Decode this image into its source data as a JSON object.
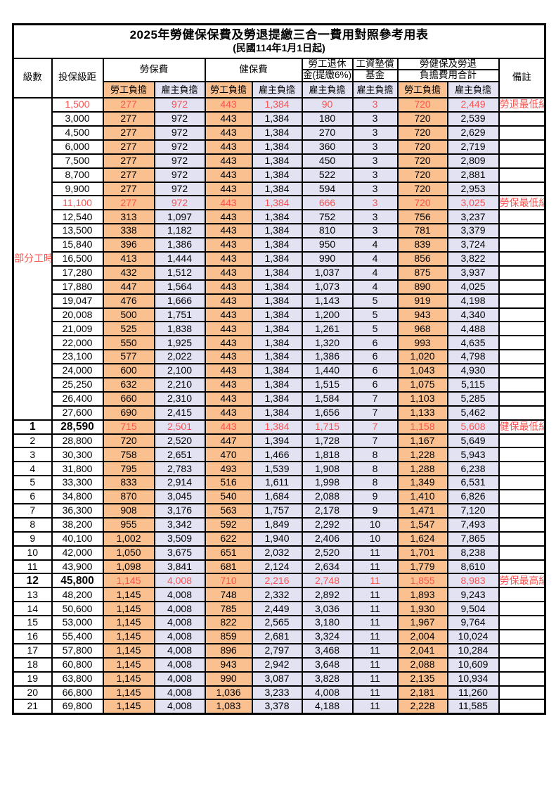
{
  "title": "2025年勞健保保費及勞退提繳三合一費用對照參考用表",
  "subtitle": "(民國114年1月1日起)",
  "header": {
    "level": "級數",
    "bracket": "投保級距",
    "labor_insurance": "勞保費",
    "health_insurance": "健保費",
    "pension_line1": "勞工退休",
    "pension_line2": "金(提繳6%)",
    "wage_fund_line1": "工資墊償",
    "wage_fund_line2": "基金",
    "total_line1": "勞健保及勞退",
    "total_line2": "負擔費用合計",
    "employee": "勞工負擔",
    "employer": "雇主負擔",
    "notes": "備註"
  },
  "part_time": {
    "label": "部分工時",
    "rowspan": 23
  },
  "colors": {
    "emp-bg": "#fac090",
    "er-bg": "#e3e2f3",
    "hl": "#fa5450",
    "border": "#000000"
  },
  "rows": [
    {
      "level": null,
      "bracket": "1,500",
      "cells": [
        "277",
        "972",
        "443",
        "1,384",
        "90",
        "3",
        "720",
        "2,449"
      ],
      "note": "勞退最低級距",
      "highlight": true,
      "bold": false
    },
    {
      "level": null,
      "bracket": "3,000",
      "cells": [
        "277",
        "972",
        "443",
        "1,384",
        "180",
        "3",
        "720",
        "2,539"
      ],
      "note": "",
      "highlight": false,
      "bold": false
    },
    {
      "level": null,
      "bracket": "4,500",
      "cells": [
        "277",
        "972",
        "443",
        "1,384",
        "270",
        "3",
        "720",
        "2,629"
      ],
      "note": "",
      "highlight": false,
      "bold": false
    },
    {
      "level": null,
      "bracket": "6,000",
      "cells": [
        "277",
        "972",
        "443",
        "1,384",
        "360",
        "3",
        "720",
        "2,719"
      ],
      "note": "",
      "highlight": false,
      "bold": false
    },
    {
      "level": null,
      "bracket": "7,500",
      "cells": [
        "277",
        "972",
        "443",
        "1,384",
        "450",
        "3",
        "720",
        "2,809"
      ],
      "note": "",
      "highlight": false,
      "bold": false
    },
    {
      "level": null,
      "bracket": "8,700",
      "cells": [
        "277",
        "972",
        "443",
        "1,384",
        "522",
        "3",
        "720",
        "2,881"
      ],
      "note": "",
      "highlight": false,
      "bold": false
    },
    {
      "level": null,
      "bracket": "9,900",
      "cells": [
        "277",
        "972",
        "443",
        "1,384",
        "594",
        "3",
        "720",
        "2,953"
      ],
      "note": "",
      "highlight": false,
      "bold": false
    },
    {
      "level": null,
      "bracket": "11,100",
      "cells": [
        "277",
        "972",
        "443",
        "1,384",
        "666",
        "3",
        "720",
        "3,025"
      ],
      "note": "勞保最低級距",
      "highlight": true,
      "bold": false
    },
    {
      "level": null,
      "bracket": "12,540",
      "cells": [
        "313",
        "1,097",
        "443",
        "1,384",
        "752",
        "3",
        "756",
        "3,237"
      ],
      "note": "",
      "highlight": false,
      "bold": false
    },
    {
      "level": null,
      "bracket": "13,500",
      "cells": [
        "338",
        "1,182",
        "443",
        "1,384",
        "810",
        "3",
        "781",
        "3,379"
      ],
      "note": "",
      "highlight": false,
      "bold": false
    },
    {
      "level": null,
      "bracket": "15,840",
      "cells": [
        "396",
        "1,386",
        "443",
        "1,384",
        "950",
        "4",
        "839",
        "3,724"
      ],
      "note": "",
      "highlight": false,
      "bold": false
    },
    {
      "level": null,
      "bracket": "16,500",
      "cells": [
        "413",
        "1,444",
        "443",
        "1,384",
        "990",
        "4",
        "856",
        "3,822"
      ],
      "note": "",
      "highlight": false,
      "bold": false
    },
    {
      "level": null,
      "bracket": "17,280",
      "cells": [
        "432",
        "1,512",
        "443",
        "1,384",
        "1,037",
        "4",
        "875",
        "3,937"
      ],
      "note": "",
      "highlight": false,
      "bold": false
    },
    {
      "level": null,
      "bracket": "17,880",
      "cells": [
        "447",
        "1,564",
        "443",
        "1,384",
        "1,073",
        "4",
        "890",
        "4,025"
      ],
      "note": "",
      "highlight": false,
      "bold": false
    },
    {
      "level": null,
      "bracket": "19,047",
      "cells": [
        "476",
        "1,666",
        "443",
        "1,384",
        "1,143",
        "5",
        "919",
        "4,198"
      ],
      "note": "",
      "highlight": false,
      "bold": false
    },
    {
      "level": null,
      "bracket": "20,008",
      "cells": [
        "500",
        "1,751",
        "443",
        "1,384",
        "1,200",
        "5",
        "943",
        "4,340"
      ],
      "note": "",
      "highlight": false,
      "bold": false
    },
    {
      "level": null,
      "bracket": "21,009",
      "cells": [
        "525",
        "1,838",
        "443",
        "1,384",
        "1,261",
        "5",
        "968",
        "4,488"
      ],
      "note": "",
      "highlight": false,
      "bold": false
    },
    {
      "level": null,
      "bracket": "22,000",
      "cells": [
        "550",
        "1,925",
        "443",
        "1,384",
        "1,320",
        "6",
        "993",
        "4,635"
      ],
      "note": "",
      "highlight": false,
      "bold": false
    },
    {
      "level": null,
      "bracket": "23,100",
      "cells": [
        "577",
        "2,022",
        "443",
        "1,384",
        "1,386",
        "6",
        "1,020",
        "4,798"
      ],
      "note": "",
      "highlight": false,
      "bold": false
    },
    {
      "level": null,
      "bracket": "24,000",
      "cells": [
        "600",
        "2,100",
        "443",
        "1,384",
        "1,440",
        "6",
        "1,043",
        "4,930"
      ],
      "note": "",
      "highlight": false,
      "bold": false
    },
    {
      "level": null,
      "bracket": "25,250",
      "cells": [
        "632",
        "2,210",
        "443",
        "1,384",
        "1,515",
        "6",
        "1,075",
        "5,115"
      ],
      "note": "",
      "highlight": false,
      "bold": false
    },
    {
      "level": null,
      "bracket": "26,400",
      "cells": [
        "660",
        "2,310",
        "443",
        "1,384",
        "1,584",
        "7",
        "1,103",
        "5,285"
      ],
      "note": "",
      "highlight": false,
      "bold": false
    },
    {
      "level": null,
      "bracket": "27,600",
      "cells": [
        "690",
        "2,415",
        "443",
        "1,384",
        "1,656",
        "7",
        "1,133",
        "5,462"
      ],
      "note": "",
      "highlight": false,
      "bold": false
    },
    {
      "level": "1",
      "bracket": "28,590",
      "cells": [
        "715",
        "2,501",
        "443",
        "1,384",
        "1,715",
        "7",
        "1,158",
        "5,608"
      ],
      "note": "健保最低級距",
      "highlight": true,
      "bold": true
    },
    {
      "level": "2",
      "bracket": "28,800",
      "cells": [
        "720",
        "2,520",
        "447",
        "1,394",
        "1,728",
        "7",
        "1,167",
        "5,649"
      ],
      "note": "",
      "highlight": false,
      "bold": false
    },
    {
      "level": "3",
      "bracket": "30,300",
      "cells": [
        "758",
        "2,651",
        "470",
        "1,466",
        "1,818",
        "8",
        "1,228",
        "5,943"
      ],
      "note": "",
      "highlight": false,
      "bold": false
    },
    {
      "level": "4",
      "bracket": "31,800",
      "cells": [
        "795",
        "2,783",
        "493",
        "1,539",
        "1,908",
        "8",
        "1,288",
        "6,238"
      ],
      "note": "",
      "highlight": false,
      "bold": false
    },
    {
      "level": "5",
      "bracket": "33,300",
      "cells": [
        "833",
        "2,914",
        "516",
        "1,611",
        "1,998",
        "8",
        "1,349",
        "6,531"
      ],
      "note": "",
      "highlight": false,
      "bold": false
    },
    {
      "level": "6",
      "bracket": "34,800",
      "cells": [
        "870",
        "3,045",
        "540",
        "1,684",
        "2,088",
        "9",
        "1,410",
        "6,826"
      ],
      "note": "",
      "highlight": false,
      "bold": false
    },
    {
      "level": "7",
      "bracket": "36,300",
      "cells": [
        "908",
        "3,176",
        "563",
        "1,757",
        "2,178",
        "9",
        "1,471",
        "7,120"
      ],
      "note": "",
      "highlight": false,
      "bold": false
    },
    {
      "level": "8",
      "bracket": "38,200",
      "cells": [
        "955",
        "3,342",
        "592",
        "1,849",
        "2,292",
        "10",
        "1,547",
        "7,493"
      ],
      "note": "",
      "highlight": false,
      "bold": false
    },
    {
      "level": "9",
      "bracket": "40,100",
      "cells": [
        "1,002",
        "3,509",
        "622",
        "1,940",
        "2,406",
        "10",
        "1,624",
        "7,865"
      ],
      "note": "",
      "highlight": false,
      "bold": false
    },
    {
      "level": "10",
      "bracket": "42,000",
      "cells": [
        "1,050",
        "3,675",
        "651",
        "2,032",
        "2,520",
        "11",
        "1,701",
        "8,238"
      ],
      "note": "",
      "highlight": false,
      "bold": false
    },
    {
      "level": "11",
      "bracket": "43,900",
      "cells": [
        "1,098",
        "3,841",
        "681",
        "2,124",
        "2,634",
        "11",
        "1,779",
        "8,610"
      ],
      "note": "",
      "highlight": false,
      "bold": false
    },
    {
      "level": "12",
      "bracket": "45,800",
      "cells": [
        "1,145",
        "4,008",
        "710",
        "2,216",
        "2,748",
        "11",
        "1,855",
        "8,983"
      ],
      "note": "勞保最高級距",
      "highlight": true,
      "bold": true
    },
    {
      "level": "13",
      "bracket": "48,200",
      "cells": [
        "1,145",
        "4,008",
        "748",
        "2,332",
        "2,892",
        "11",
        "1,893",
        "9,243"
      ],
      "note": "",
      "highlight": false,
      "bold": false
    },
    {
      "level": "14",
      "bracket": "50,600",
      "cells": [
        "1,145",
        "4,008",
        "785",
        "2,449",
        "3,036",
        "11",
        "1,930",
        "9,504"
      ],
      "note": "",
      "highlight": false,
      "bold": false
    },
    {
      "level": "15",
      "bracket": "53,000",
      "cells": [
        "1,145",
        "4,008",
        "822",
        "2,565",
        "3,180",
        "11",
        "1,967",
        "9,764"
      ],
      "note": "",
      "highlight": false,
      "bold": false
    },
    {
      "level": "16",
      "bracket": "55,400",
      "cells": [
        "1,145",
        "4,008",
        "859",
        "2,681",
        "3,324",
        "11",
        "2,004",
        "10,024"
      ],
      "note": "",
      "highlight": false,
      "bold": false
    },
    {
      "level": "17",
      "bracket": "57,800",
      "cells": [
        "1,145",
        "4,008",
        "896",
        "2,797",
        "3,468",
        "11",
        "2,041",
        "10,284"
      ],
      "note": "",
      "highlight": false,
      "bold": false
    },
    {
      "level": "18",
      "bracket": "60,800",
      "cells": [
        "1,145",
        "4,008",
        "943",
        "2,942",
        "3,648",
        "11",
        "2,088",
        "10,609"
      ],
      "note": "",
      "highlight": false,
      "bold": false
    },
    {
      "level": "19",
      "bracket": "63,800",
      "cells": [
        "1,145",
        "4,008",
        "990",
        "3,087",
        "3,828",
        "11",
        "2,135",
        "10,934"
      ],
      "note": "",
      "highlight": false,
      "bold": false
    },
    {
      "level": "20",
      "bracket": "66,800",
      "cells": [
        "1,145",
        "4,008",
        "1,036",
        "3,233",
        "4,008",
        "11",
        "2,181",
        "11,260"
      ],
      "note": "",
      "highlight": false,
      "bold": false
    },
    {
      "level": "21",
      "bracket": "69,800",
      "cells": [
        "1,145",
        "4,008",
        "1,083",
        "3,378",
        "4,188",
        "11",
        "2,228",
        "11,585"
      ],
      "note": "",
      "highlight": false,
      "bold": false
    }
  ]
}
